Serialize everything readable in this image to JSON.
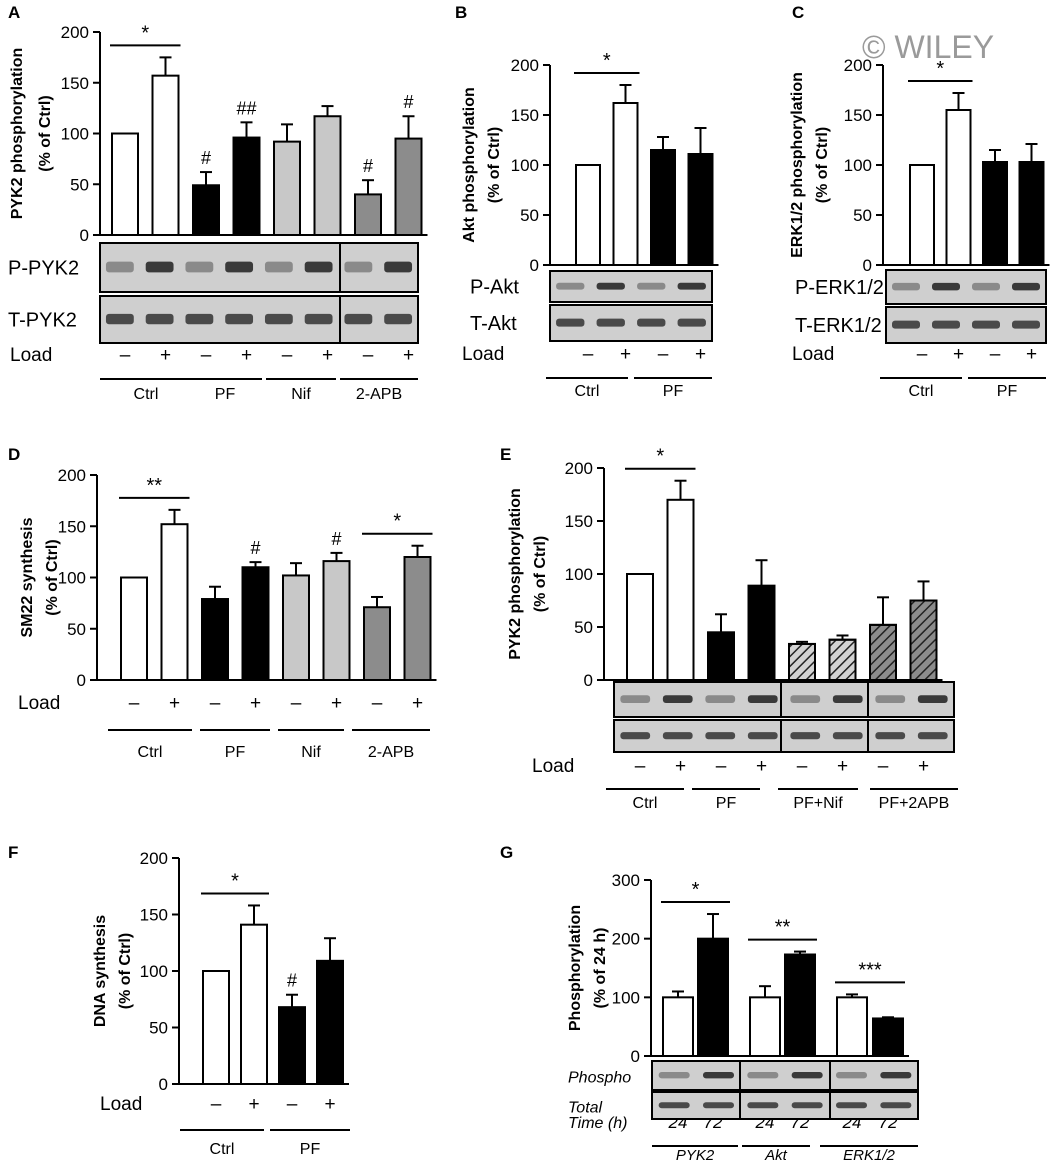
{
  "watermark": "© WILEY",
  "chart_data": [
    {
      "panel": "A",
      "type": "bar",
      "ylabel": [
        "PYK2 phosphorylation",
        "(% of Ctrl)"
      ],
      "ylim": [
        0,
        200
      ],
      "yticks": [
        "0",
        "50",
        "100",
        "150",
        "200"
      ],
      "load_label": "Load",
      "bars": [
        {
          "value": 100,
          "error": 0,
          "fill": "#ffffff",
          "load": "–"
        },
        {
          "value": 157,
          "error": 18,
          "fill": "#ffffff",
          "load": "+"
        },
        {
          "value": 49,
          "error": 13,
          "fill": "#000000",
          "load": "–",
          "mark": "#"
        },
        {
          "value": 96,
          "error": 15,
          "fill": "#000000",
          "load": "+",
          "mark": "##"
        },
        {
          "value": 92,
          "error": 17,
          "fill": "#c8c8c8",
          "load": "–"
        },
        {
          "value": 117,
          "error": 10,
          "fill": "#c8c8c8",
          "load": "+"
        },
        {
          "value": 40,
          "error": 14,
          "fill": "#8c8c8c",
          "load": "–",
          "mark": "#"
        },
        {
          "value": 95,
          "error": 22,
          "fill": "#8c8c8c",
          "load": "+",
          "mark": "#"
        }
      ],
      "groups": [
        "Ctrl",
        "PF",
        "Nif",
        "2-APB"
      ],
      "brackets": [
        {
          "from": 0,
          "to": 1,
          "label": "*"
        }
      ],
      "blot_rows": [
        "P-PYK2",
        "T-PYK2"
      ]
    },
    {
      "panel": "B",
      "type": "bar",
      "ylabel": [
        "Akt phosphorylation",
        "(% of Ctrl)"
      ],
      "ylim": [
        0,
        200
      ],
      "yticks": [
        "0",
        "50",
        "100",
        "150",
        "200"
      ],
      "load_label": "Load",
      "bars": [
        {
          "value": 100,
          "error": 0,
          "fill": "#ffffff",
          "load": "–"
        },
        {
          "value": 162,
          "error": 18,
          "fill": "#ffffff",
          "load": "+"
        },
        {
          "value": 115,
          "error": 13,
          "fill": "#000000",
          "load": "–"
        },
        {
          "value": 111,
          "error": 26,
          "fill": "#000000",
          "load": "+"
        }
      ],
      "groups": [
        "Ctrl",
        "PF"
      ],
      "brackets": [
        {
          "from": 0,
          "to": 1,
          "label": "*"
        }
      ],
      "blot_rows": [
        "P-Akt",
        "T-Akt"
      ]
    },
    {
      "panel": "C",
      "type": "bar",
      "ylabel": [
        "ERK1/2 phosphorylation",
        "(% of Ctrl)"
      ],
      "ylim": [
        0,
        200
      ],
      "yticks": [
        "0",
        "50",
        "100",
        "150",
        "200"
      ],
      "load_label": "Load",
      "bars": [
        {
          "value": 100,
          "error": 0,
          "fill": "#ffffff",
          "load": "–"
        },
        {
          "value": 155,
          "error": 17,
          "fill": "#ffffff",
          "load": "+"
        },
        {
          "value": 103,
          "error": 12,
          "fill": "#000000",
          "load": "–"
        },
        {
          "value": 103,
          "error": 18,
          "fill": "#000000",
          "load": "+"
        }
      ],
      "groups": [
        "Ctrl",
        "PF"
      ],
      "brackets": [
        {
          "from": 0,
          "to": 1,
          "label": "*"
        }
      ],
      "blot_rows": [
        "P-ERK1/2",
        "T-ERK1/2"
      ]
    },
    {
      "panel": "D",
      "type": "bar",
      "ylabel": [
        "SM22 synthesis",
        "(% of Ctrl)"
      ],
      "ylim": [
        0,
        200
      ],
      "yticks": [
        "0",
        "50",
        "100",
        "150",
        "200"
      ],
      "load_label": "Load",
      "bars": [
        {
          "value": 100,
          "error": 0,
          "fill": "#ffffff",
          "load": "–"
        },
        {
          "value": 152,
          "error": 14,
          "fill": "#ffffff",
          "load": "+"
        },
        {
          "value": 79,
          "error": 12,
          "fill": "#000000",
          "load": "–"
        },
        {
          "value": 110,
          "error": 5,
          "fill": "#000000",
          "load": "+",
          "mark": "#"
        },
        {
          "value": 102,
          "error": 12,
          "fill": "#c8c8c8",
          "load": "–"
        },
        {
          "value": 116,
          "error": 8,
          "fill": "#c8c8c8",
          "load": "+",
          "mark": "#"
        },
        {
          "value": 71,
          "error": 10,
          "fill": "#8c8c8c",
          "load": "–"
        },
        {
          "value": 120,
          "error": 11,
          "fill": "#8c8c8c",
          "load": "+"
        }
      ],
      "groups": [
        "Ctrl",
        "PF",
        "Nif",
        "2-APB"
      ],
      "brackets": [
        {
          "from": 0,
          "to": 1,
          "label": "**"
        },
        {
          "from": 6,
          "to": 7,
          "label": "*"
        }
      ]
    },
    {
      "panel": "E",
      "type": "bar",
      "ylabel": [
        "PYK2 phosphorylation",
        "(% of Ctrl)"
      ],
      "ylim": [
        0,
        200
      ],
      "yticks": [
        "0",
        "50",
        "100",
        "150",
        "200"
      ],
      "load_label": "Load",
      "bars": [
        {
          "value": 100,
          "error": 0,
          "fill": "#ffffff",
          "load": "–"
        },
        {
          "value": 170,
          "error": 18,
          "fill": "#ffffff",
          "load": "+"
        },
        {
          "value": 45,
          "error": 17,
          "fill": "#000000",
          "load": "–"
        },
        {
          "value": 89,
          "error": 24,
          "fill": "#000000",
          "load": "+"
        },
        {
          "value": 34,
          "error": 2,
          "fill": "#d2d2d2",
          "hatch": true,
          "load": "–"
        },
        {
          "value": 38,
          "error": 4,
          "fill": "#d2d2d2",
          "hatch": true,
          "load": "+"
        },
        {
          "value": 52,
          "error": 26,
          "fill": "#8c8c8c",
          "hatch": true,
          "load": "–"
        },
        {
          "value": 75,
          "error": 18,
          "fill": "#8c8c8c",
          "hatch": true,
          "load": "+"
        }
      ],
      "groups": [
        "Ctrl",
        "PF",
        "PF+Nif",
        "PF+2APB"
      ],
      "brackets": [
        {
          "from": 0,
          "to": 1,
          "label": "*"
        }
      ]
    },
    {
      "panel": "F",
      "type": "bar",
      "ylabel": [
        "DNA synthesis",
        "(% of Ctrl)"
      ],
      "ylim": [
        0,
        200
      ],
      "yticks": [
        "0",
        "50",
        "100",
        "150",
        "200"
      ],
      "load_label": "Load",
      "bars": [
        {
          "value": 100,
          "error": 0,
          "fill": "#ffffff",
          "load": "–"
        },
        {
          "value": 141,
          "error": 17,
          "fill": "#ffffff",
          "load": "+"
        },
        {
          "value": 68,
          "error": 11,
          "fill": "#000000",
          "load": "–",
          "mark": "#"
        },
        {
          "value": 109,
          "error": 20,
          "fill": "#000000",
          "load": "+"
        }
      ],
      "groups": [
        "Ctrl",
        "PF"
      ],
      "brackets": [
        {
          "from": 0,
          "to": 1,
          "label": "*"
        }
      ]
    },
    {
      "panel": "G",
      "type": "bar",
      "ylabel": [
        "Phosphorylation",
        "(% of 24 h)"
      ],
      "ylim": [
        0,
        300
      ],
      "yticks": [
        "0",
        "100",
        "200",
        "300"
      ],
      "time_label": "Time (h)",
      "bars": [
        {
          "value": 100,
          "error": 10,
          "fill": "#ffffff",
          "time": "24"
        },
        {
          "value": 200,
          "error": 42,
          "fill": "#000000",
          "time": "72"
        },
        {
          "value": 100,
          "error": 19,
          "fill": "#ffffff",
          "time": "24"
        },
        {
          "value": 173,
          "error": 5,
          "fill": "#000000",
          "time": "72"
        },
        {
          "value": 100,
          "error": 5,
          "fill": "#ffffff",
          "time": "24"
        },
        {
          "value": 64,
          "error": 2,
          "fill": "#000000",
          "time": "72"
        }
      ],
      "groups": [
        "PYK2",
        "Akt",
        "ERK1/2"
      ],
      "brackets": [
        {
          "from": 0,
          "to": 1,
          "label": "*"
        },
        {
          "from": 2,
          "to": 3,
          "label": "**"
        },
        {
          "from": 4,
          "to": 5,
          "label": "***"
        }
      ],
      "blot_rows": [
        "Phospho",
        "Total"
      ]
    }
  ]
}
